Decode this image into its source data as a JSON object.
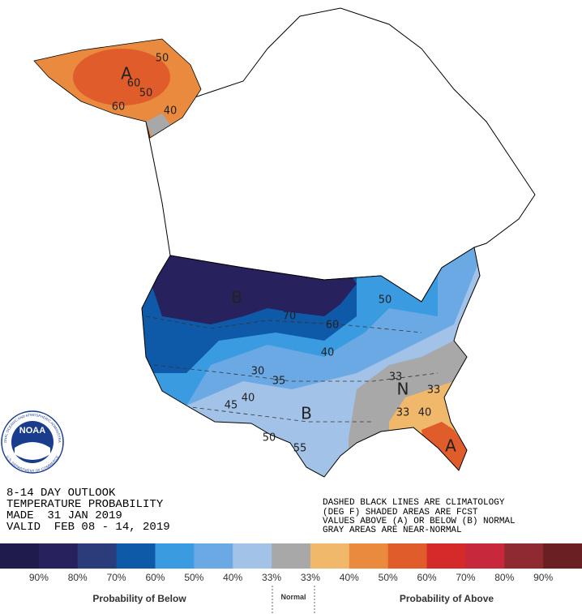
{
  "map": {
    "labels": [
      "A",
      "50",
      "60",
      "50",
      "40",
      "60",
      "B",
      "70",
      "60",
      "50",
      "40",
      "30",
      "35",
      "40",
      "45",
      "B",
      "50",
      "55",
      "33",
      "N",
      "33",
      "40",
      "33",
      "A"
    ]
  },
  "title_block": {
    "lines": [
      "8-14 DAY OUTLOOK",
      "TEMPERATURE PROBABILITY",
      "MADE  31 JAN 2019",
      "VALID  FEB 08 - 14, 2019"
    ]
  },
  "note": {
    "lines": [
      "DASHED BLACK LINES ARE CLIMATOLOGY",
      "(DEG F) SHADED AREAS ARE FCST",
      "VALUES ABOVE (A) OR BELOW (B) NORMAL",
      "GRAY AREAS ARE NEAR-NORMAL"
    ]
  },
  "logo": {
    "name": "NOAA",
    "ring_top": "NATIONAL OCEANIC AND ATMOSPHERIC ADMINISTRATION",
    "ring_bottom": "U.S. DEPARTMENT OF COMMERCE"
  },
  "legend": {
    "colors": [
      "#1f1b4d",
      "#27215e",
      "#2b3c7b",
      "#0f5aa8",
      "#3b9be0",
      "#6ba9e4",
      "#a2c2e8",
      "#a8a8a8",
      "#f0b86a",
      "#ea8a3e",
      "#e05c2a",
      "#d42a2a",
      "#c8283c",
      "#8e2a30",
      "#6a1f22"
    ],
    "tick_labels": [
      "90%",
      "80%",
      "70%",
      "60%",
      "50%",
      "40%",
      "33%",
      "33%",
      "40%",
      "50%",
      "60%",
      "70%",
      "80%",
      "90%"
    ],
    "below_title": "Probability of Below",
    "normal_title": "Normal",
    "above_title": "Probability of Above"
  }
}
